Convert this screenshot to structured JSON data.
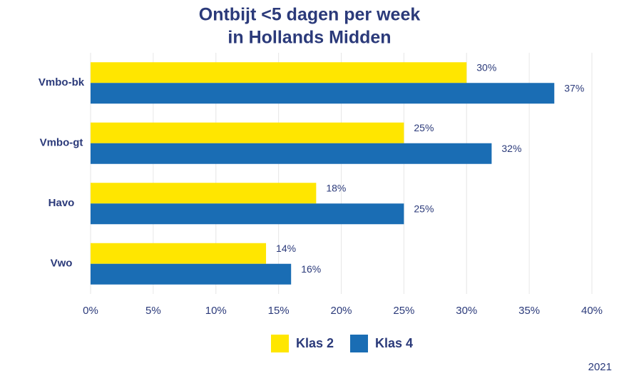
{
  "chart_data": {
    "type": "bar",
    "orientation": "horizontal",
    "title": [
      "Ontbijt <5 dagen per week",
      "in Hollands Midden"
    ],
    "categories": [
      "Vmbo-bk",
      "Vmbo-gt",
      "Havo",
      "Vwo"
    ],
    "series": [
      {
        "name": "Klas 2",
        "color": "#ffe600",
        "values": [
          30,
          25,
          18,
          14
        ],
        "value_labels": [
          "30%",
          "25%",
          "18%",
          "14%"
        ]
      },
      {
        "name": "Klas 4",
        "color": "#1a6db4",
        "values": [
          37,
          32,
          25,
          16
        ],
        "value_labels": [
          "37%",
          "32%",
          "25%",
          "16%"
        ]
      }
    ],
    "xlim": [
      0,
      40
    ],
    "xticks": [
      {
        "value": 0,
        "label": "0%"
      },
      {
        "value": 5,
        "label": "5%"
      },
      {
        "value": 10,
        "label": "10%"
      },
      {
        "value": 15,
        "label": "15%"
      },
      {
        "value": 20,
        "label": "20%"
      },
      {
        "value": 25,
        "label": "25%"
      },
      {
        "value": 30,
        "label": "30%"
      },
      {
        "value": 35,
        "label": "35%"
      },
      {
        "value": 40,
        "label": "40%"
      }
    ],
    "grid": true,
    "legend": "bottom",
    "footnote": "2021"
  }
}
